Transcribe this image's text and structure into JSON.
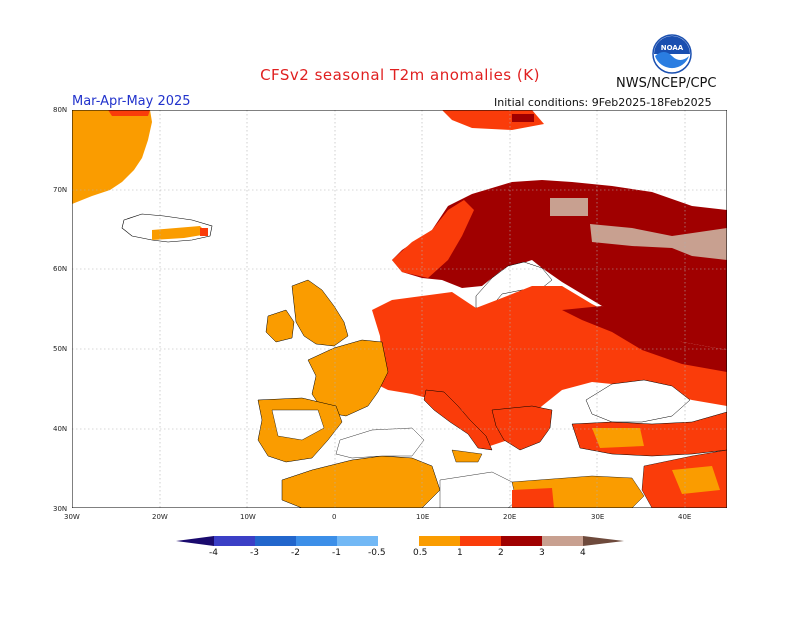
{
  "header": {
    "title": "CFSv2 seasonal T2m anomalies (K)",
    "agency": "NWS/NCEP/CPC",
    "logo_text": "NOAA",
    "season": "Mar-Apr-May 2025",
    "initial_conditions": "Initial conditions: 9Feb2025-18Feb2025"
  },
  "map": {
    "region": "Europe",
    "lat_labels": [
      "80N",
      "70N",
      "60N",
      "50N",
      "40N",
      "30N"
    ],
    "lon_labels": [
      "30W",
      "20W",
      "10W",
      "0",
      "10E",
      "20E",
      "30E",
      "40E"
    ]
  },
  "colorbar": {
    "tick_labels": [
      "-4",
      "-3",
      "-2",
      "-1",
      "-0.5",
      "0.5",
      "1",
      "2",
      "3",
      "4"
    ],
    "colors": {
      "lt_m4": "#1a0a6e",
      "m4_m3": "#3b3fc6",
      "m3_m2": "#2266cc",
      "m2_m1": "#3c8fe8",
      "m1_m05": "#72b8f5",
      "neutral": "#ffffff",
      "p05_p1": "#fa9c00",
      "p1_p2": "#fa3c0a",
      "p2_p3": "#a00000",
      "p3_p4": "#c8a090",
      "gt_p4": "#6e4a3c"
    }
  }
}
